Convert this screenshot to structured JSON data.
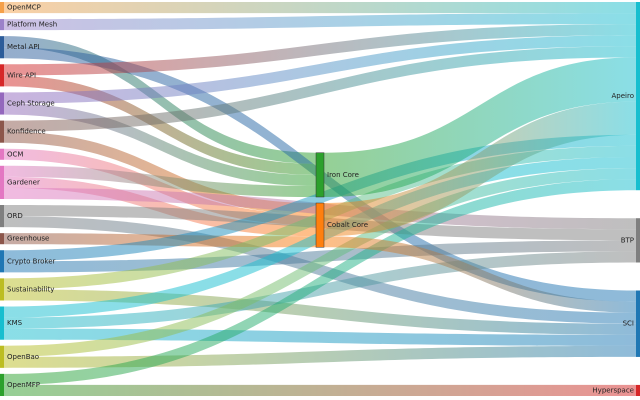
{
  "chart_data": {
    "type": "sankey",
    "nodes": [
      {
        "name": "OpenMCP",
        "color": "#f5a04a"
      },
      {
        "name": "Platform Mesh",
        "color": "#9b82c9"
      },
      {
        "name": "Metal API",
        "color": "#2c5c9a"
      },
      {
        "name": "Wire API",
        "color": "#d62728"
      },
      {
        "name": "Ceph Storage",
        "color": "#9467bd"
      },
      {
        "name": "Konfidence",
        "color": "#8c564b"
      },
      {
        "name": "OCM",
        "color": "#e377c2"
      },
      {
        "name": "Gardener",
        "color": "#e377c2"
      },
      {
        "name": "ORD",
        "color": "#7f7f7f"
      },
      {
        "name": "Greenhouse",
        "color": "#8c564b"
      },
      {
        "name": "Crypto Broker",
        "color": "#1f77b4"
      },
      {
        "name": "Sustainability",
        "color": "#bcbd22"
      },
      {
        "name": "KMS",
        "color": "#17becf"
      },
      {
        "name": "OpenBao",
        "color": "#bcbd22"
      },
      {
        "name": "OpenMFP",
        "color": "#2ca02c"
      },
      {
        "name": "Iron Core",
        "color": "#2ca02c"
      },
      {
        "name": "Cobalt Core",
        "color": "#ff7f0e"
      },
      {
        "name": "Apeiro",
        "color": "#17becf"
      },
      {
        "name": "BTP",
        "color": "#7f7f7f"
      },
      {
        "name": "SCI",
        "color": "#1f77b4"
      },
      {
        "name": "Hyperspace",
        "color": "#d62728"
      }
    ],
    "links": [
      {
        "source": "OpenMCP",
        "target": "Apeiro",
        "value": 1
      },
      {
        "source": "Platform Mesh",
        "target": "Apeiro",
        "value": 1
      },
      {
        "source": "Metal API",
        "target": "Iron Core",
        "value": 1
      },
      {
        "source": "Metal API",
        "target": "SCI",
        "value": 1
      },
      {
        "source": "Wire API",
        "target": "Iron Core",
        "value": 1
      },
      {
        "source": "Wire API",
        "target": "Apeiro",
        "value": 1
      },
      {
        "source": "Ceph Storage",
        "target": "Iron Core",
        "value": 1
      },
      {
        "source": "Ceph Storage",
        "target": "Apeiro",
        "value": 1
      },
      {
        "source": "Konfidence",
        "target": "Cobalt Core",
        "value": 1
      },
      {
        "source": "Konfidence",
        "target": "Apeiro",
        "value": 1
      },
      {
        "source": "OCM",
        "target": "Cobalt Core",
        "value": 1
      },
      {
        "source": "Gardener",
        "target": "Iron Core",
        "value": 1
      },
      {
        "source": "Gardener",
        "target": "Cobalt Core",
        "value": 1
      },
      {
        "source": "Gardener",
        "target": "BTP",
        "value": 1
      },
      {
        "source": "ORD",
        "target": "BTP",
        "value": 1
      },
      {
        "source": "ORD",
        "target": "SCI",
        "value": 1
      },
      {
        "source": "Greenhouse",
        "target": "Cobalt Core",
        "value": 1
      },
      {
        "source": "Crypto Broker",
        "target": "Apeiro",
        "value": 1
      },
      {
        "source": "Crypto Broker",
        "target": "BTP",
        "value": 1
      },
      {
        "source": "Sustainability",
        "target": "Apeiro",
        "value": 1
      },
      {
        "source": "Sustainability",
        "target": "SCI",
        "value": 1
      },
      {
        "source": "KMS",
        "target": "Apeiro",
        "value": 1
      },
      {
        "source": "KMS",
        "target": "BTP",
        "value": 1
      },
      {
        "source": "KMS",
        "target": "SCI",
        "value": 1
      },
      {
        "source": "OpenBao",
        "target": "Apeiro",
        "value": 1
      },
      {
        "source": "OpenBao",
        "target": "SCI",
        "value": 1
      },
      {
        "source": "OpenMFP",
        "target": "Apeiro",
        "value": 1
      },
      {
        "source": "OpenMFP",
        "target": "Hyperspace",
        "value": 1
      },
      {
        "source": "Iron Core",
        "target": "Apeiro",
        "value": 4
      },
      {
        "source": "Cobalt Core",
        "target": "Apeiro",
        "value": 3
      },
      {
        "source": "Cobalt Core",
        "target": "SCI",
        "value": 1
      }
    ]
  }
}
